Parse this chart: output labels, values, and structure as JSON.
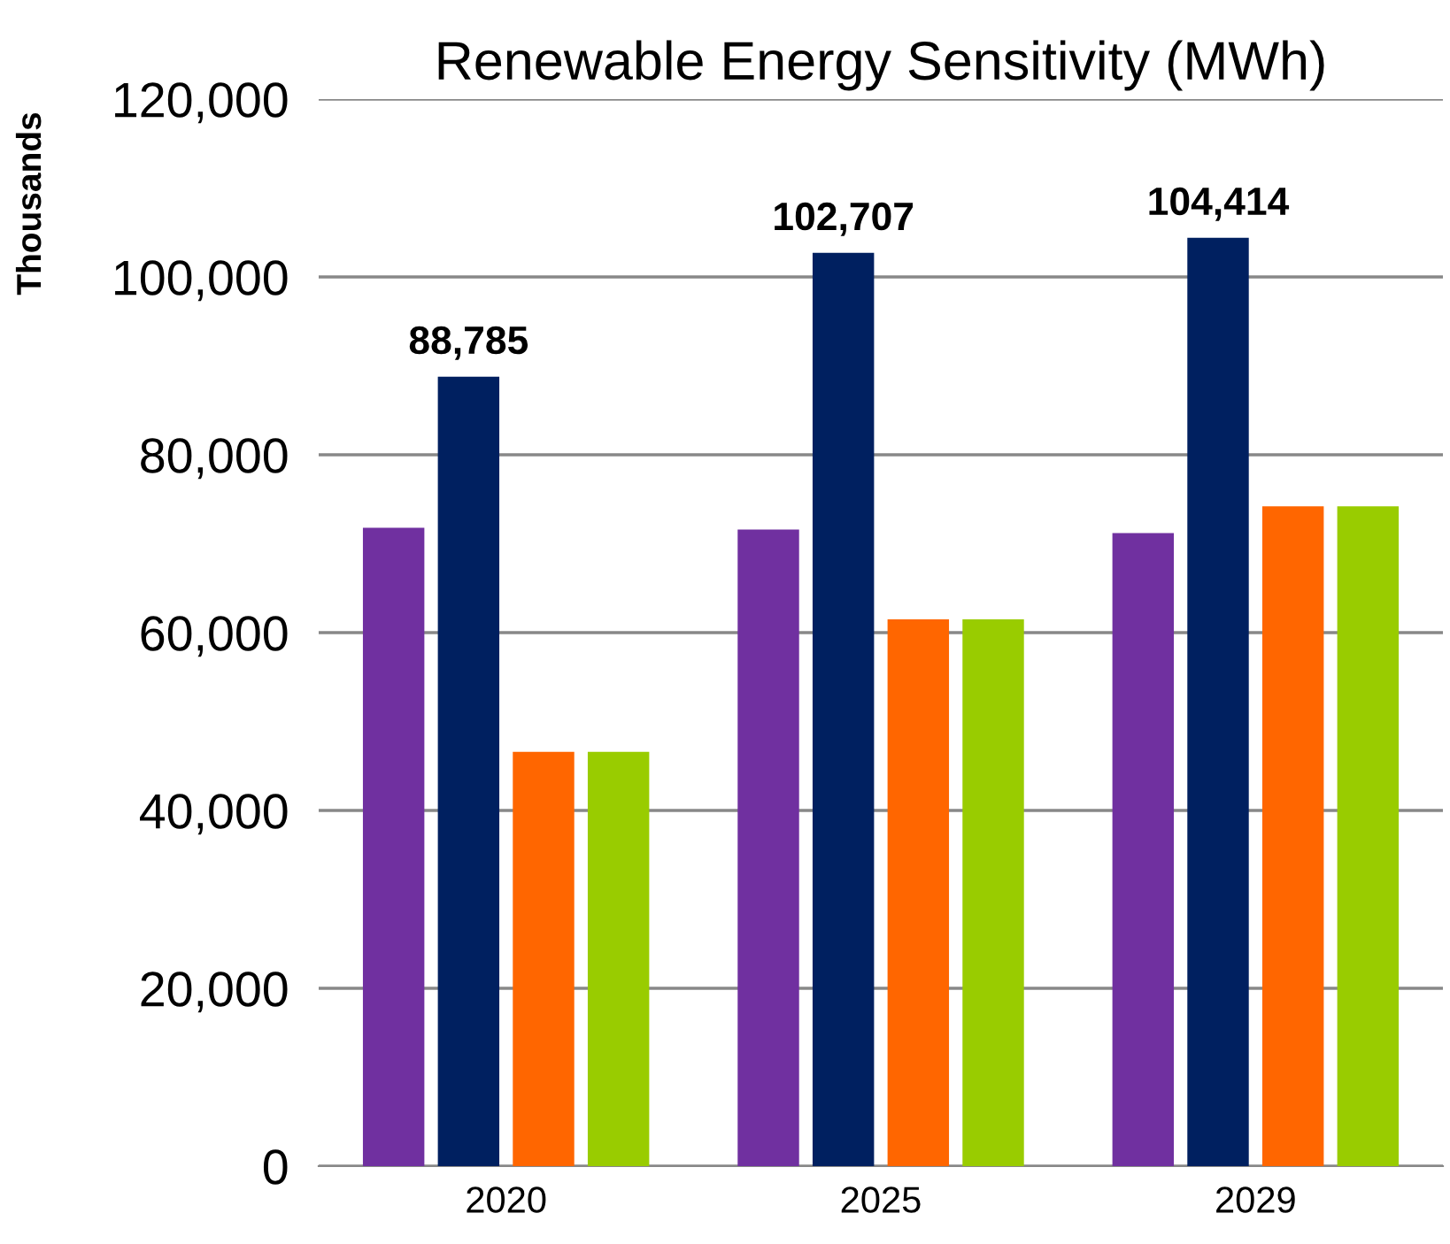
{
  "chart_data": {
    "type": "bar",
    "title": "Renewable Energy Sensitivity (MWh)",
    "ylabel": "Thousands",
    "categories": [
      "2020",
      "2025",
      "2029"
    ],
    "series": [
      {
        "color": "#7030a0",
        "values": [
          71800,
          71600,
          71200
        ]
      },
      {
        "color": "#002060",
        "values": [
          88785,
          102707,
          104414
        ],
        "value_labels": [
          "88,785",
          "102,707",
          "104,414"
        ]
      },
      {
        "color": "#ff6600",
        "values": [
          46600,
          61500,
          74200
        ]
      },
      {
        "color": "#99cc00",
        "values": [
          46600,
          61500,
          74200
        ]
      }
    ],
    "ylim": [
      0,
      120000
    ],
    "yticks": [
      {
        "value": 0,
        "label": "0"
      },
      {
        "value": 20000,
        "label": "20,000"
      },
      {
        "value": 40000,
        "label": "40,000"
      },
      {
        "value": 60000,
        "label": "60,000"
      },
      {
        "value": 80000,
        "label": "80,000"
      },
      {
        "value": 100000,
        "label": "100,000"
      },
      {
        "value": 120000,
        "label": "120,000"
      }
    ],
    "grid": "y"
  }
}
